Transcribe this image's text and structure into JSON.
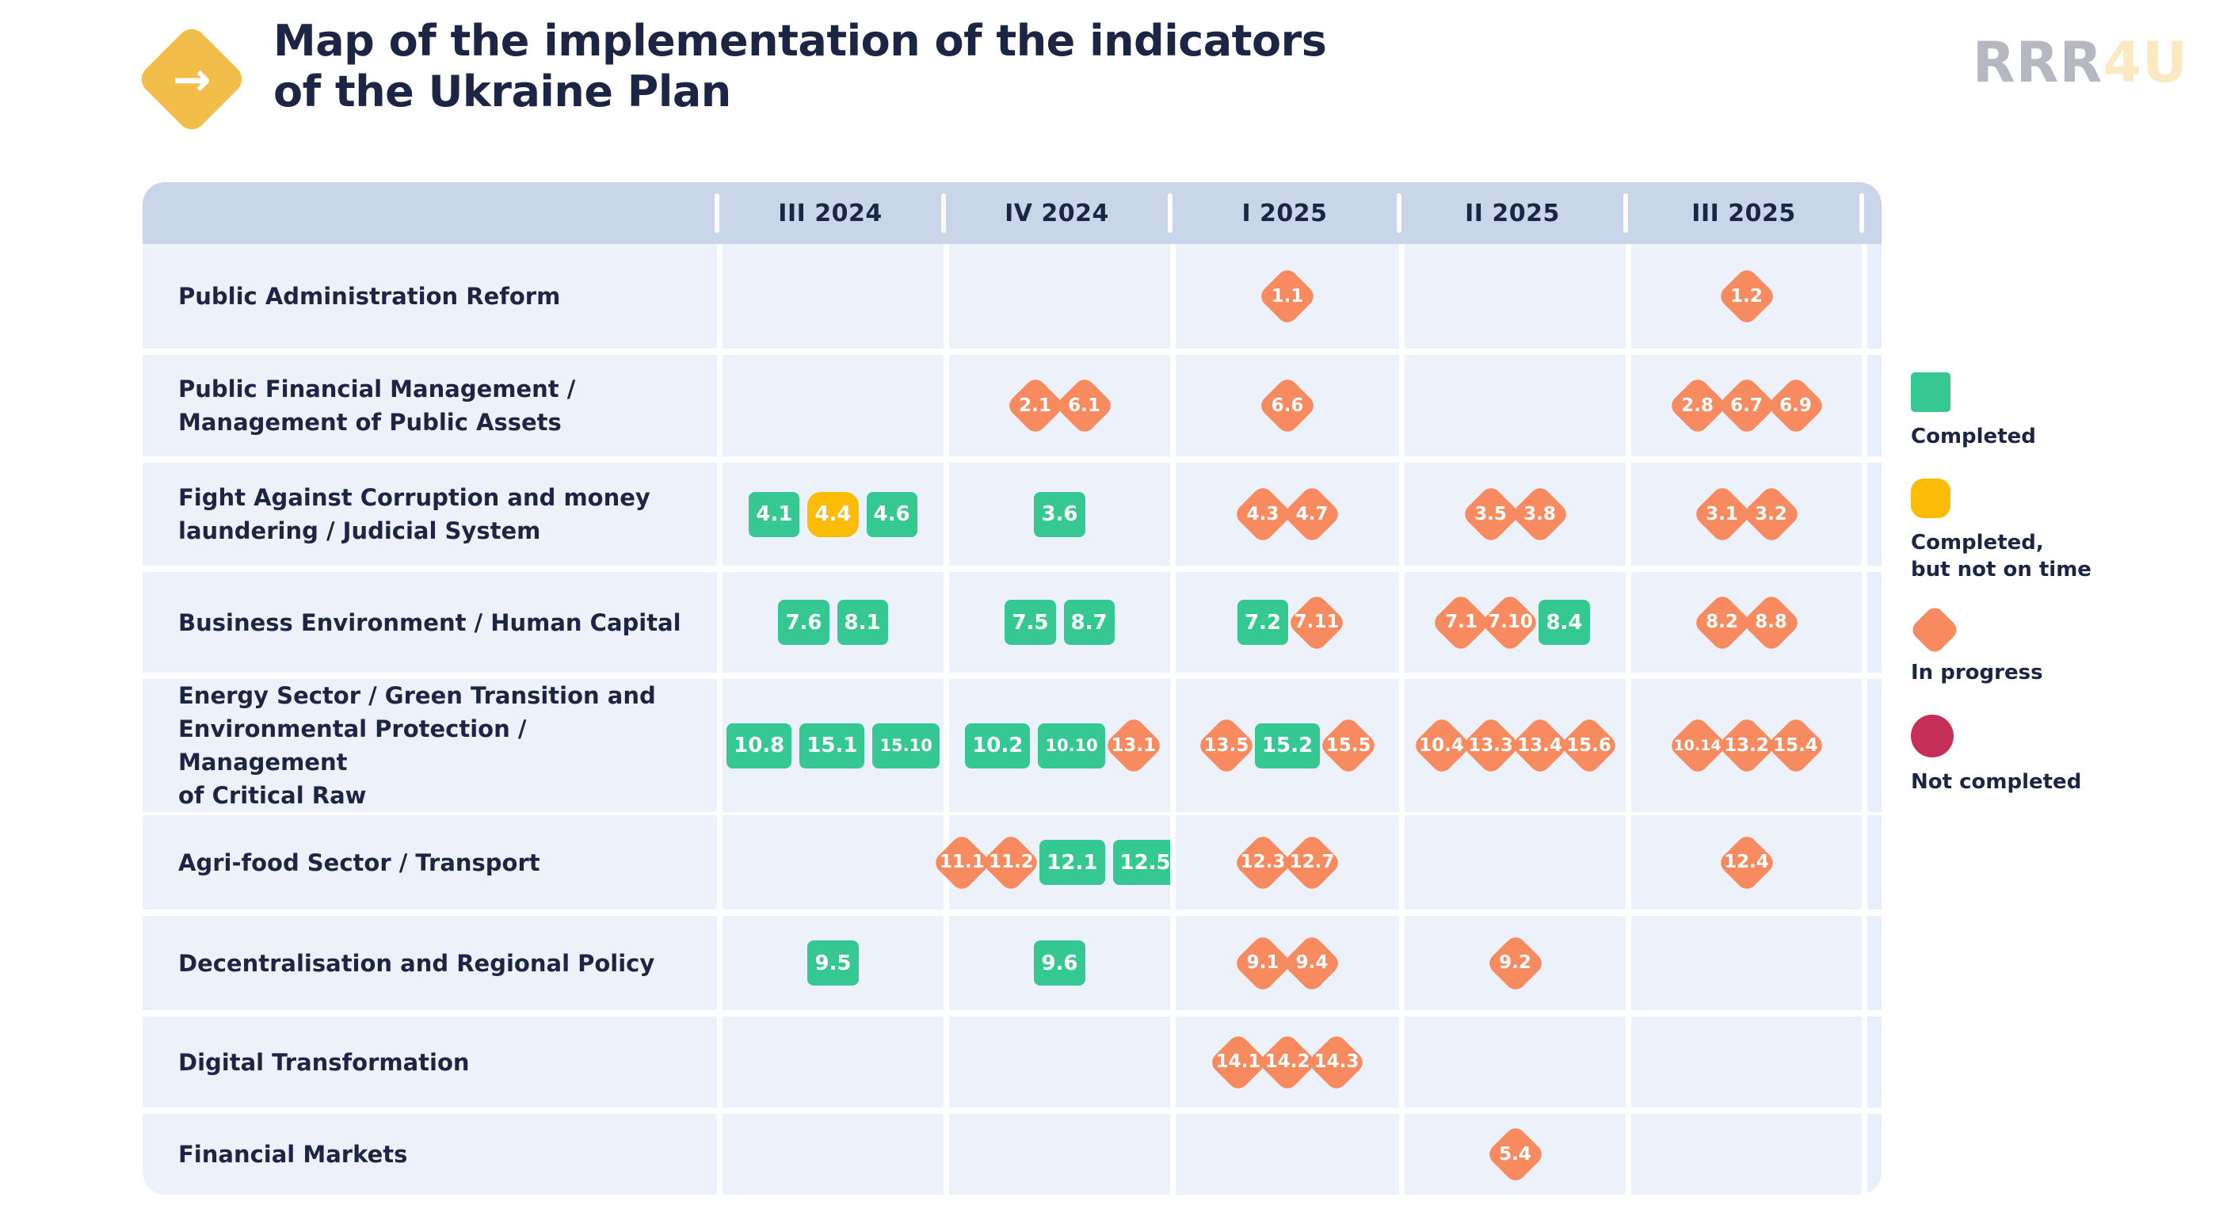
{
  "header": {
    "title_lines": [
      "Map of the implementation of the indicators",
      "of the Ukraine Plan"
    ],
    "logo": {
      "icon": "arrow-right-icon",
      "glyph": "→"
    },
    "brand": {
      "gray": "RRR",
      "yellow": "4U"
    }
  },
  "colors": {
    "completed": "#36c893",
    "completed_late": "#fcbc05",
    "in_progress": "#f78b5f",
    "not_completed": "#c52e56",
    "header_bar": "#c9d6e9",
    "row_bg": "#edf2fa",
    "column_strip": "#e9effa",
    "title_text": "#1d2545",
    "brand_gray": "#b5b8c0",
    "brand_yellow": "#fbe9c2",
    "logo_yellow": "#f3bd49"
  },
  "chart_data": {
    "type": "table",
    "title": "Map of the implementation of the indicators of the Ukraine Plan",
    "columns": [
      "III 2024",
      "IV 2024",
      "I 2025",
      "II 2025",
      "III 2025"
    ],
    "statuses": [
      "completed",
      "completed-late",
      "in-progress",
      "not-completed"
    ],
    "rows": [
      {
        "label_lines": [
          "Public Administration Reform"
        ],
        "cells": [
          [],
          [],
          [
            {
              "id": "1.1",
              "status": "in-progress"
            }
          ],
          [],
          [
            {
              "id": "1.2",
              "status": "in-progress"
            }
          ]
        ]
      },
      {
        "label_lines": [
          "Public Financial Management /",
          "Management of Public Assets"
        ],
        "cells": [
          [],
          [
            {
              "id": "2.1",
              "status": "in-progress"
            },
            {
              "id": "6.1",
              "status": "in-progress"
            }
          ],
          [
            {
              "id": "6.6",
              "status": "in-progress"
            }
          ],
          [],
          [
            {
              "id": "2.8",
              "status": "in-progress"
            },
            {
              "id": "6.7",
              "status": "in-progress"
            },
            {
              "id": "6.9",
              "status": "in-progress"
            }
          ]
        ]
      },
      {
        "label_lines": [
          "Fight Against Corruption and money",
          "laundering / Judicial System"
        ],
        "cells": [
          [
            {
              "id": "4.1",
              "status": "completed"
            },
            {
              "id": "4.4",
              "status": "completed-late"
            },
            {
              "id": "4.6",
              "status": "completed"
            }
          ],
          [
            {
              "id": "3.6",
              "status": "completed"
            }
          ],
          [
            {
              "id": "4.3",
              "status": "in-progress"
            },
            {
              "id": "4.7",
              "status": "in-progress"
            }
          ],
          [
            {
              "id": "3.5",
              "status": "in-progress"
            },
            {
              "id": "3.8",
              "status": "in-progress"
            }
          ],
          [
            {
              "id": "3.1",
              "status": "in-progress"
            },
            {
              "id": "3.2",
              "status": "in-progress"
            }
          ]
        ]
      },
      {
        "label_lines": [
          "Business Environment / Human Capital"
        ],
        "cells": [
          [
            {
              "id": "7.6",
              "status": "completed"
            },
            {
              "id": "8.1",
              "status": "completed"
            }
          ],
          [
            {
              "id": "7.5",
              "status": "completed"
            },
            {
              "id": "8.7",
              "status": "completed"
            }
          ],
          [
            {
              "id": "7.2",
              "status": "completed"
            },
            {
              "id": "7.11",
              "status": "in-progress"
            }
          ],
          [
            {
              "id": "7.1",
              "status": "in-progress"
            },
            {
              "id": "7.10",
              "status": "in-progress"
            },
            {
              "id": "8.4",
              "status": "completed"
            }
          ],
          [
            {
              "id": "8.2",
              "status": "in-progress"
            },
            {
              "id": "8.8",
              "status": "in-progress"
            }
          ]
        ]
      },
      {
        "label_lines": [
          "Energy Sector / Green Transition and",
          "Environmental Protection / Management",
          "of Critical Raw"
        ],
        "cells": [
          [
            {
              "id": "10.8",
              "status": "completed"
            },
            {
              "id": "15.1",
              "status": "completed"
            },
            {
              "id": "15.10",
              "status": "completed"
            }
          ],
          [
            {
              "id": "10.2",
              "status": "completed"
            },
            {
              "id": "10.10",
              "status": "completed"
            },
            {
              "id": "13.1",
              "status": "in-progress"
            }
          ],
          [
            {
              "id": "13.5",
              "status": "in-progress"
            },
            {
              "id": "15.2",
              "status": "completed"
            },
            {
              "id": "15.5",
              "status": "in-progress"
            }
          ],
          [
            {
              "id": "10.4",
              "status": "in-progress"
            },
            {
              "id": "13.3",
              "status": "in-progress"
            },
            {
              "id": "13.4",
              "status": "in-progress"
            },
            {
              "id": "15.6",
              "status": "in-progress"
            }
          ],
          [
            {
              "id": "10.14",
              "status": "in-progress"
            },
            {
              "id": "13.2",
              "status": "in-progress"
            },
            {
              "id": "15.4",
              "status": "in-progress"
            }
          ]
        ]
      },
      {
        "label_lines": [
          "Agri-food Sector / Transport"
        ],
        "cells": [
          [],
          [
            {
              "id": "11.1",
              "status": "in-progress"
            },
            {
              "id": "11.2",
              "status": "in-progress"
            },
            {
              "id": "12.1",
              "status": "completed"
            },
            {
              "id": "12.5",
              "status": "completed"
            }
          ],
          [
            {
              "id": "12.3",
              "status": "in-progress"
            },
            {
              "id": "12.7",
              "status": "in-progress"
            }
          ],
          [],
          [
            {
              "id": "12.4",
              "status": "in-progress"
            }
          ]
        ]
      },
      {
        "label_lines": [
          "Decentralisation and Regional Policy"
        ],
        "cells": [
          [
            {
              "id": "9.5",
              "status": "completed"
            }
          ],
          [
            {
              "id": "9.6",
              "status": "completed"
            }
          ],
          [
            {
              "id": "9.1",
              "status": "in-progress"
            },
            {
              "id": "9.4",
              "status": "in-progress"
            }
          ],
          [
            {
              "id": "9.2",
              "status": "in-progress"
            }
          ],
          []
        ]
      },
      {
        "label_lines": [
          "Digital Transformation"
        ],
        "cells": [
          [],
          [],
          [
            {
              "id": "14.1",
              "status": "in-progress"
            },
            {
              "id": "14.2",
              "status": "in-progress"
            },
            {
              "id": "14.3",
              "status": "in-progress"
            }
          ],
          [],
          []
        ]
      },
      {
        "label_lines": [
          "Financial Markets"
        ],
        "cells": [
          [],
          [],
          [],
          [
            {
              "id": "5.4",
              "status": "in-progress"
            }
          ],
          []
        ]
      }
    ]
  },
  "legend": {
    "items": [
      {
        "status": "completed",
        "shape": "square",
        "color": "#36c893",
        "label_lines": [
          "Completed"
        ]
      },
      {
        "status": "completed-late",
        "shape": "rounded-square",
        "color": "#fcbc05",
        "label_lines": [
          "Completed,",
          "but not on time"
        ]
      },
      {
        "status": "in-progress",
        "shape": "diamond",
        "color": "#f78b5f",
        "label_lines": [
          "In progress"
        ]
      },
      {
        "status": "not-completed",
        "shape": "circle",
        "color": "#c52e56",
        "label_lines": [
          "Not completed"
        ]
      }
    ]
  }
}
